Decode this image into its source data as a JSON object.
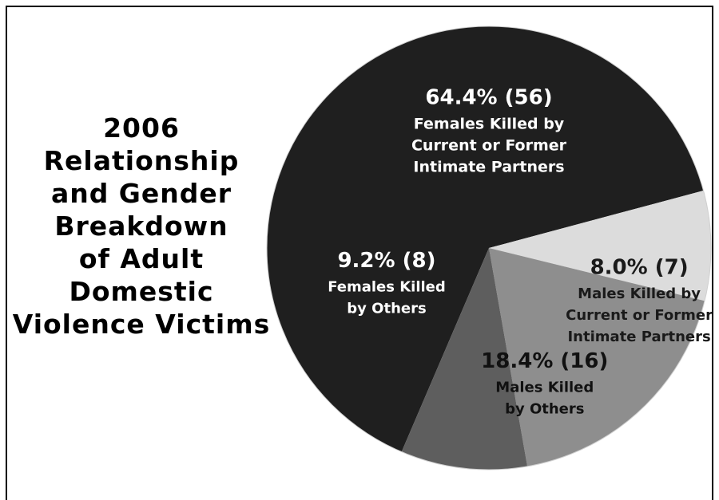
{
  "chart_data": {
    "type": "pie",
    "title_lines": [
      "2006",
      "Relationship",
      "and Gender",
      "Breakdown",
      "of Adult",
      "Domestic",
      "Violence Victims"
    ],
    "slices": [
      {
        "value": 64.4,
        "count": 56,
        "pct_label": "64.4% (56)",
        "label_lines": [
          "Females Killed by",
          "Current or Former",
          "Intimate Partners"
        ],
        "color": "#1f1f1f",
        "text_color": "#ffffff"
      },
      {
        "value": 8.0,
        "count": 7,
        "pct_label": "8.0% (7)",
        "label_lines": [
          "Males Killed by",
          "Current or Former",
          "Intimate Partners"
        ],
        "color": "#dcdcdc",
        "text_color": "#1a1a1a"
      },
      {
        "value": 18.4,
        "count": 16,
        "pct_label": "18.4% (16)",
        "label_lines": [
          "Males Killed",
          "by Others"
        ],
        "color": "#8e8e8e",
        "text_color": "#111111"
      },
      {
        "value": 9.2,
        "count": 8,
        "pct_label": "9.2% (8)",
        "label_lines": [
          "Females Killed",
          "by Others"
        ],
        "color": "#5e5e5e",
        "text_color": "#ffffff"
      }
    ]
  }
}
